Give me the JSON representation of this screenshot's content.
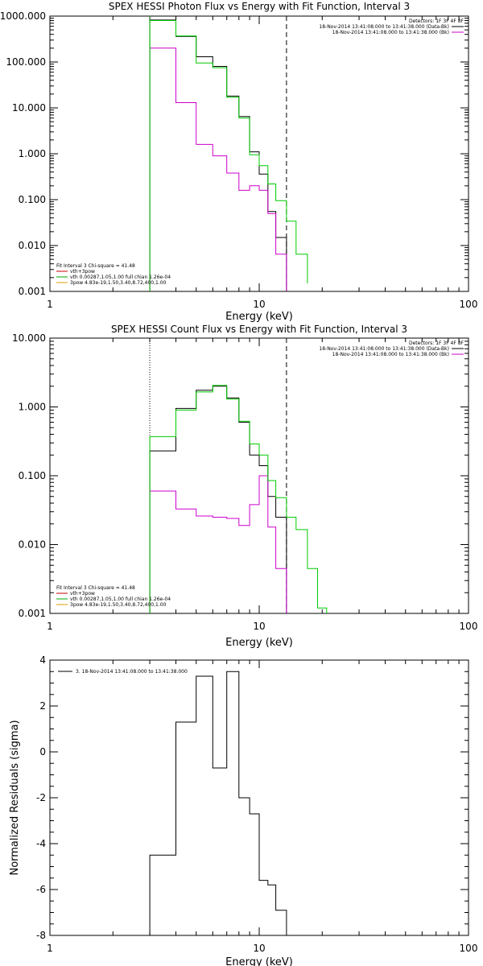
{
  "chart_data": [
    {
      "type": "line",
      "title": "SPEX HESSI Photon Flux vs Energy with Fit Function, Interval 3",
      "xlabel": "Energy (keV)",
      "ylabel": "",
      "x_scale": "log",
      "y_scale": "log",
      "xlim": [
        1,
        100
      ],
      "ylim": [
        0.001,
        1000
      ],
      "x_ticks": [
        "1",
        "10",
        "100"
      ],
      "y_ticks": [
        "0.001",
        "0.010",
        "0.100",
        "1.000",
        "10.000",
        "100.000",
        "1000.000"
      ],
      "legend_top": {
        "header": "Detectors: 1F 3F 4F 8F",
        "entries": [
          {
            "text": "18-Nov-2014 13:41:08.000 to 13:41:38.000 (Data-Bk)",
            "color": "#000000"
          },
          {
            "text": "18-Nov-2014 13:41:08.000 to 13:41:38.000 (Bk)",
            "color": "#cc00cc"
          }
        ]
      },
      "legend_bottom": {
        "header": "Fit Interval 3   Chi-square = 41.48",
        "entries": [
          {
            "text": "vth+3pow",
            "color": "#cc0000"
          },
          {
            "text": "vth 0.00287,1.05,1.00  full chian 1.26e-04",
            "color": "#00aa00"
          },
          {
            "text": "3pow 4.83e-19,1.50,3.40,8.72,400,1.00",
            "color": "#e0a000"
          }
        ]
      },
      "vlines": [
        {
          "x": 3.0,
          "style": "dotted",
          "color": "#00cc00"
        },
        {
          "x": 13.5,
          "style": "dashed",
          "color": "#000000"
        }
      ],
      "series": [
        {
          "name": "Data-Bk",
          "color": "#000000",
          "style": "step",
          "edges": [
            3.0,
            4.0,
            5.0,
            6.0,
            7.0,
            8.0,
            9.0,
            10.0,
            11.0,
            12.0,
            13.5
          ],
          "values": [
            820,
            360,
            130,
            80,
            18,
            6.5,
            1.1,
            0.36,
            0.055,
            0.015
          ]
        },
        {
          "name": "Bk",
          "color": "#cc00cc",
          "style": "step",
          "edges": [
            3.0,
            4.0,
            5.0,
            6.0,
            7.0,
            8.0,
            9.0,
            10.0,
            11.0,
            12.0,
            13.5
          ],
          "values": [
            200,
            13,
            1.6,
            0.9,
            0.38,
            0.16,
            0.2,
            0.16,
            0.05,
            0.0065
          ]
        },
        {
          "name": "vth+3pow",
          "color": "#00cc00",
          "style": "step",
          "edges": [
            3.0,
            4.0,
            5.0,
            6.0,
            7.0,
            8.0,
            9.0,
            10.0,
            11.0,
            12.0,
            13.5,
            15.0,
            17.0
          ],
          "values": [
            800,
            370,
            95,
            75,
            17,
            6.0,
            0.95,
            0.55,
            0.22,
            0.095,
            0.034,
            0.0065,
            0.0015
          ]
        }
      ]
    },
    {
      "type": "line",
      "title": "SPEX HESSI Count Flux vs Energy with Fit Function, Interval 3",
      "xlabel": "Energy (keV)",
      "ylabel": "",
      "x_scale": "log",
      "y_scale": "log",
      "xlim": [
        1,
        100
      ],
      "ylim": [
        0.001,
        10
      ],
      "x_ticks": [
        "1",
        "10",
        "100"
      ],
      "y_ticks": [
        "0.001",
        "0.010",
        "0.100",
        "1.000",
        "10.000"
      ],
      "legend_top": {
        "header": "Detectors: 1F 3F 4F 8F",
        "entries": [
          {
            "text": "18-Nov-2014 13:41:08.000 to 13:41:38.000 (Data-Bk)",
            "color": "#000000"
          },
          {
            "text": "18-Nov-2014 13:41:08.000 to 13:41:38.000 (Bk)",
            "color": "#cc00cc"
          }
        ]
      },
      "legend_bottom": {
        "header": "Fit Interval 3   Chi-square = 41.48",
        "entries": [
          {
            "text": "vth+3pow",
            "color": "#cc0000"
          },
          {
            "text": "vth 0.00287,1.05,1.00  full chian 1.26e-04",
            "color": "#00aa00"
          },
          {
            "text": "3pow 4.83e-19,1.50,3.40,8.72,400,1.00",
            "color": "#e0a000"
          }
        ]
      },
      "vlines": [
        {
          "x": 3.0,
          "style": "dotted",
          "color": "#000000"
        },
        {
          "x": 13.5,
          "style": "dashed",
          "color": "#000000"
        }
      ],
      "series": [
        {
          "name": "Data-Bk",
          "color": "#000000",
          "style": "step",
          "edges": [
            3.0,
            4.0,
            5.0,
            6.0,
            7.0,
            8.0,
            9.0,
            10.0,
            11.0,
            12.0,
            13.5
          ],
          "values": [
            0.23,
            0.95,
            1.75,
            2.0,
            1.35,
            0.6,
            0.2,
            0.14,
            0.05,
            0.025
          ]
        },
        {
          "name": "Bk",
          "color": "#cc00cc",
          "style": "step",
          "edges": [
            3.0,
            4.0,
            5.0,
            6.0,
            7.0,
            8.0,
            9.0,
            10.0,
            11.0,
            12.0,
            13.5
          ],
          "values": [
            0.06,
            0.033,
            0.026,
            0.025,
            0.024,
            0.019,
            0.038,
            0.1,
            0.018,
            0.0045
          ]
        },
        {
          "name": "vth+3pow",
          "color": "#00cc00",
          "style": "step",
          "edges": [
            3.0,
            4.0,
            5.0,
            6.0,
            7.0,
            8.0,
            9.0,
            10.0,
            11.0,
            12.0,
            13.5,
            15.0,
            17.0,
            19.0,
            21.0
          ],
          "values": [
            0.37,
            0.9,
            1.65,
            2.05,
            1.3,
            0.62,
            0.29,
            0.2,
            0.085,
            0.048,
            0.025,
            0.0165,
            0.0045,
            0.0012
          ]
        }
      ]
    },
    {
      "type": "line",
      "title": "",
      "xlabel": "Energy (keV)",
      "ylabel": "Normalized Residuals (sigma)",
      "x_scale": "log",
      "y_scale": "linear",
      "xlim": [
        1,
        100
      ],
      "ylim": [
        -8,
        4
      ],
      "x_ticks": [
        "1",
        "10",
        "100"
      ],
      "y_ticks": [
        "-8",
        "-6",
        "-4",
        "-2",
        "0",
        "2",
        "4"
      ],
      "legend_top": {
        "header": "",
        "entries": [
          {
            "text": "3. 18-Nov-2014 13:41:08.000 to 13:41:38.000",
            "color": "#000000"
          }
        ]
      },
      "vlines": [],
      "series": [
        {
          "name": "residuals",
          "color": "#000000",
          "style": "step",
          "edges": [
            3.0,
            4.0,
            5.0,
            6.0,
            7.0,
            8.0,
            9.0,
            10.0,
            11.0,
            12.0,
            13.5
          ],
          "values": [
            -4.5,
            1.3,
            3.3,
            -0.7,
            3.5,
            -2.0,
            -2.7,
            -5.6,
            -5.8,
            -6.9
          ]
        }
      ]
    }
  ]
}
